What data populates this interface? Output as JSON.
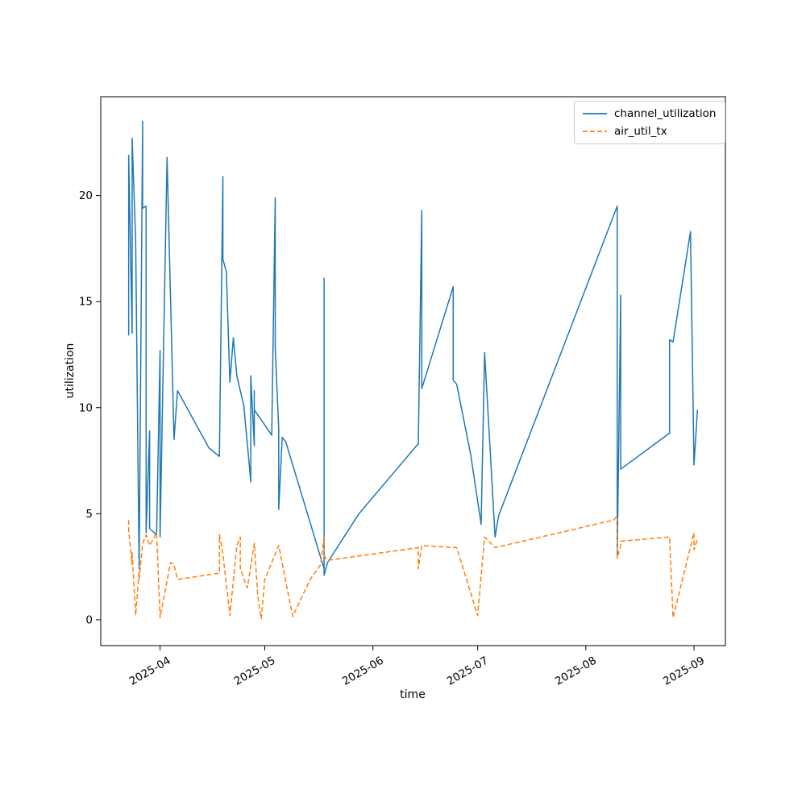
{
  "figure": {
    "background": "#ffffff"
  },
  "axes": {
    "xlabel": "time",
    "ylabel": "utilization",
    "x_ticks": [
      {
        "label": "2025-04",
        "date": "2025-04-01"
      },
      {
        "label": "2025-05",
        "date": "2025-05-01"
      },
      {
        "label": "2025-06",
        "date": "2025-06-01"
      },
      {
        "label": "2025-07",
        "date": "2025-07-01"
      },
      {
        "label": "2025-08",
        "date": "2025-08-01"
      },
      {
        "label": "2025-09",
        "date": "2025-09-01"
      }
    ],
    "y_ticks": [
      {
        "label": "0",
        "value": 0
      },
      {
        "label": "5",
        "value": 5
      },
      {
        "label": "10",
        "value": 10
      },
      {
        "label": "15",
        "value": 15
      },
      {
        "label": "20",
        "value": 20
      }
    ],
    "x_tick_rotation_deg": 30,
    "spine_color": "#000000",
    "tick_color": "#000000"
  },
  "legend": {
    "position": "upper right",
    "border_color": "#cccccc",
    "items": [
      {
        "label": "channel_utilization",
        "color": "#1f77b4",
        "line_style": "solid"
      },
      {
        "label": "air_util_tx",
        "color": "#ff7f0e",
        "line_style": "dashed"
      }
    ]
  },
  "chart_data": {
    "type": "line",
    "title": "",
    "xlabel": "time",
    "ylabel": "utilization",
    "x_range": [
      "2025-03-15",
      "2025-09-10"
    ],
    "ylim": [
      -1.22,
      24.66
    ],
    "grid": false,
    "legend_position": "upper right",
    "line_width": 1.5,
    "series": [
      {
        "name": "channel_utilization",
        "color": "#1f77b4",
        "line_style": "solid",
        "points": [
          [
            "2025-03-23",
            13.4
          ],
          [
            "2025-03-23",
            21.9
          ],
          [
            "2025-03-24",
            13.5
          ],
          [
            "2025-03-24",
            22.7
          ],
          [
            "2025-03-25",
            17.9
          ],
          [
            "2025-03-26",
            2.4
          ],
          [
            "2025-03-27",
            23.5
          ],
          [
            "2025-03-27",
            19.4
          ],
          [
            "2025-03-28",
            19.5
          ],
          [
            "2025-03-28",
            4.1
          ],
          [
            "2025-03-29",
            8.9
          ],
          [
            "2025-03-29",
            4.3
          ],
          [
            "2025-03-31",
            4.0
          ],
          [
            "2025-04-01",
            12.7
          ],
          [
            "2025-04-01",
            3.9
          ],
          [
            "2025-04-03",
            21.8
          ],
          [
            "2025-04-05",
            8.5
          ],
          [
            "2025-04-06",
            10.8
          ],
          [
            "2025-04-15",
            8.1
          ],
          [
            "2025-04-18",
            7.7
          ],
          [
            "2025-04-19",
            20.9
          ],
          [
            "2025-04-19",
            17.0
          ],
          [
            "2025-04-20",
            16.4
          ],
          [
            "2025-04-21",
            11.2
          ],
          [
            "2025-04-22",
            13.3
          ],
          [
            "2025-04-23",
            11.5
          ],
          [
            "2025-04-25",
            10.1
          ],
          [
            "2025-04-27",
            6.5
          ],
          [
            "2025-04-27",
            11.5
          ],
          [
            "2025-04-28",
            8.2
          ],
          [
            "2025-04-28",
            10.8
          ],
          [
            "2025-04-28",
            9.9
          ],
          [
            "2025-05-03",
            8.7
          ],
          [
            "2025-05-04",
            19.9
          ],
          [
            "2025-05-04",
            12.8
          ],
          [
            "2025-05-05",
            9.0
          ],
          [
            "2025-05-05",
            5.2
          ],
          [
            "2025-05-06",
            8.6
          ],
          [
            "2025-05-07",
            8.4
          ],
          [
            "2025-05-18",
            2.4
          ],
          [
            "2025-05-18",
            16.1
          ],
          [
            "2025-05-18",
            2.1
          ],
          [
            "2025-05-19",
            2.7
          ],
          [
            "2025-05-28",
            5.0
          ],
          [
            "2025-06-14",
            8.3
          ],
          [
            "2025-06-15",
            19.3
          ],
          [
            "2025-06-15",
            13.1
          ],
          [
            "2025-06-15",
            10.9
          ],
          [
            "2025-06-24",
            15.7
          ],
          [
            "2025-06-24",
            11.3
          ],
          [
            "2025-06-25",
            11.1
          ],
          [
            "2025-06-29",
            7.8
          ],
          [
            "2025-07-02",
            4.5
          ],
          [
            "2025-07-03",
            12.6
          ],
          [
            "2025-07-06",
            3.9
          ],
          [
            "2025-07-07",
            4.9
          ],
          [
            "2025-08-10",
            19.5
          ],
          [
            "2025-08-10",
            3.0
          ],
          [
            "2025-08-11",
            15.3
          ],
          [
            "2025-08-11",
            7.1
          ],
          [
            "2025-08-25",
            8.8
          ],
          [
            "2025-08-25",
            13.2
          ],
          [
            "2025-08-26",
            13.1
          ],
          [
            "2025-08-31",
            18.3
          ],
          [
            "2025-09-01",
            7.3
          ],
          [
            "2025-09-02",
            9.9
          ]
        ]
      },
      {
        "name": "air_util_tx",
        "color": "#ff7f0e",
        "line_style": "dashed",
        "points": [
          [
            "2025-03-23",
            4.7
          ],
          [
            "2025-03-23",
            4.2
          ],
          [
            "2025-03-24",
            2.6
          ],
          [
            "2025-03-24",
            3.2
          ],
          [
            "2025-03-25",
            0.2
          ],
          [
            "2025-03-26",
            2.3
          ],
          [
            "2025-03-26",
            1.9
          ],
          [
            "2025-03-27",
            3.6
          ],
          [
            "2025-03-28",
            4.0
          ],
          [
            "2025-03-29",
            3.5
          ],
          [
            "2025-03-31",
            4.1
          ],
          [
            "2025-04-01",
            0.1
          ],
          [
            "2025-04-04",
            2.7
          ],
          [
            "2025-04-05",
            2.6
          ],
          [
            "2025-04-06",
            1.9
          ],
          [
            "2025-04-18",
            2.2
          ],
          [
            "2025-04-18",
            4.0
          ],
          [
            "2025-04-19",
            3.1
          ],
          [
            "2025-04-21",
            0.2
          ],
          [
            "2025-04-23",
            3.5
          ],
          [
            "2025-04-24",
            3.9
          ],
          [
            "2025-04-24",
            2.4
          ],
          [
            "2025-04-26",
            1.5
          ],
          [
            "2025-04-28",
            3.6
          ],
          [
            "2025-04-29",
            1.1
          ],
          [
            "2025-04-30",
            0.05
          ],
          [
            "2025-05-01",
            1.9
          ],
          [
            "2025-05-05",
            3.5
          ],
          [
            "2025-05-09",
            0.15
          ],
          [
            "2025-05-14",
            1.9
          ],
          [
            "2025-05-17",
            2.6
          ],
          [
            "2025-05-18",
            3.9
          ],
          [
            "2025-05-18",
            3.0
          ],
          [
            "2025-05-19",
            2.8
          ],
          [
            "2025-06-14",
            3.4
          ],
          [
            "2025-06-14",
            2.4
          ],
          [
            "2025-06-15",
            3.5
          ],
          [
            "2025-06-25",
            3.4
          ],
          [
            "2025-07-01",
            0.2
          ],
          [
            "2025-07-03",
            3.9
          ],
          [
            "2025-07-06",
            3.4
          ],
          [
            "2025-08-09",
            4.7
          ],
          [
            "2025-08-10",
            4.9
          ],
          [
            "2025-08-10",
            2.9
          ],
          [
            "2025-08-11",
            3.5
          ],
          [
            "2025-08-11",
            3.7
          ],
          [
            "2025-08-25",
            3.9
          ],
          [
            "2025-08-26",
            0.1
          ],
          [
            "2025-09-01",
            4.1
          ],
          [
            "2025-09-01",
            3.3
          ],
          [
            "2025-09-02",
            3.8
          ]
        ]
      }
    ]
  }
}
